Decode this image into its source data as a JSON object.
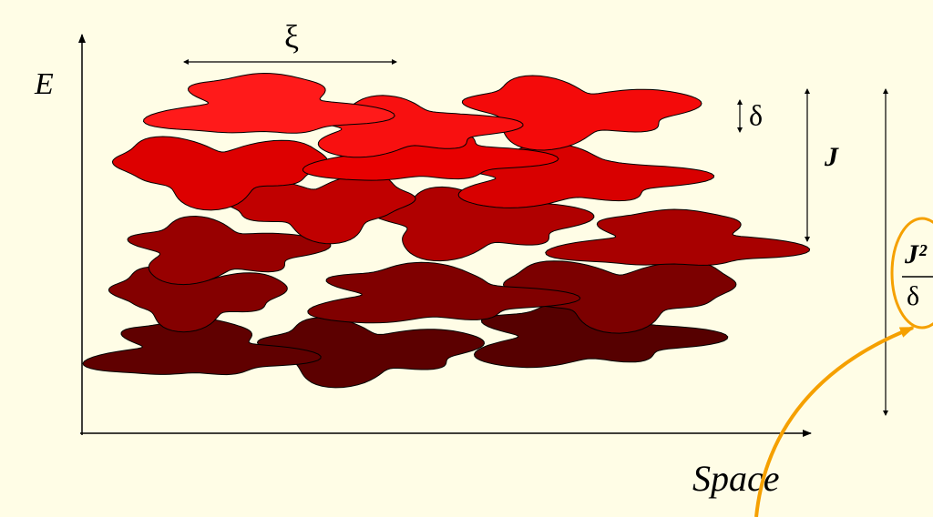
{
  "labels": {
    "energy_axis": "E",
    "space_axis": "Space",
    "localization_length": "ξ",
    "level_spacing": "δ",
    "coupling": "J",
    "ratio_numerator": "J²",
    "ratio_denominator": "δ"
  }
}
